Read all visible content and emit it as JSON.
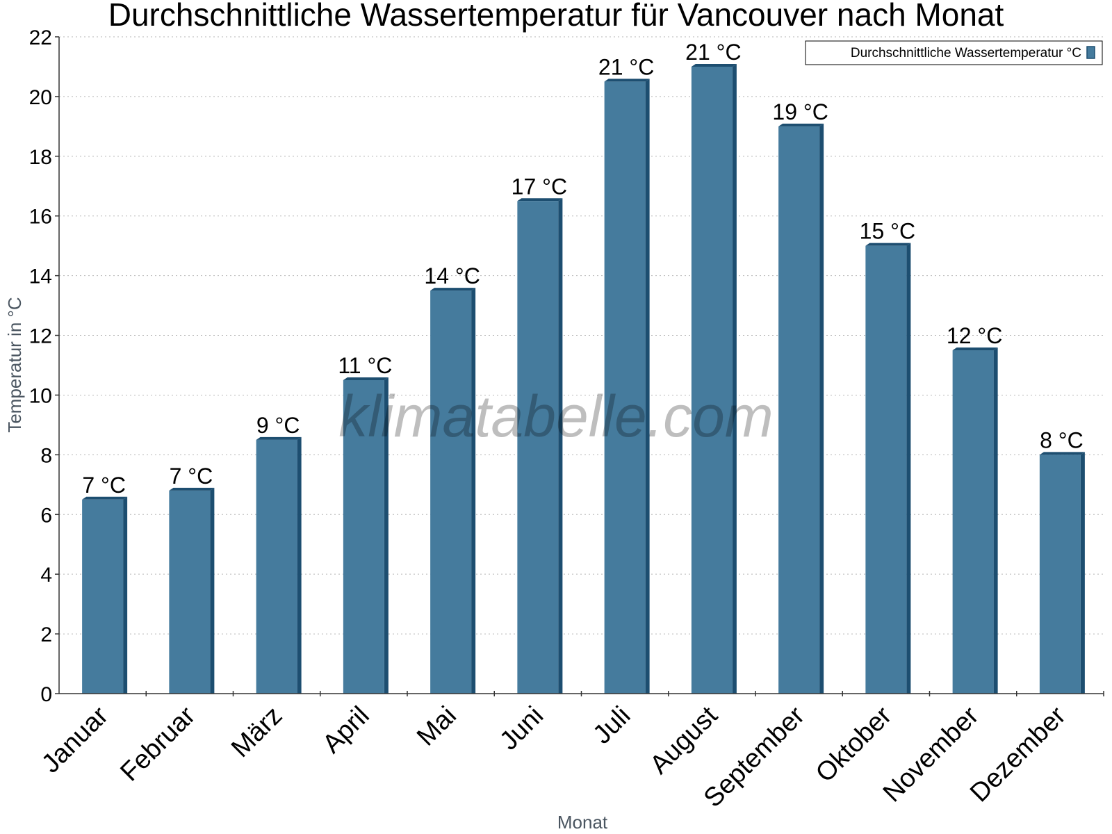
{
  "chart_data": {
    "type": "bar",
    "title": "Durchschnittliche Wassertemperatur für Vancouver nach Monat",
    "xlabel": "Monat",
    "ylabel": "Temperatur in °C",
    "categories": [
      "Januar",
      "Februar",
      "März",
      "April",
      "Mai",
      "Juni",
      "Juli",
      "August",
      "September",
      "Oktober",
      "November",
      "Dezember"
    ],
    "series": [
      {
        "name": "Durchschnittliche Wassertemperatur °C",
        "values": [
          6.5,
          6.8,
          8.5,
          10.5,
          13.5,
          16.5,
          20.5,
          21.0,
          19.0,
          15.0,
          11.5,
          8.0
        ],
        "labels": [
          "7 °C",
          "7 °C",
          "9 °C",
          "11 °C",
          "14 °C",
          "17 °C",
          "21 °C",
          "21 °C",
          "19 °C",
          "15 °C",
          "12 °C",
          "8 °C"
        ]
      }
    ],
    "ylim": [
      0,
      22
    ],
    "yticks": [
      "0",
      "2",
      "4",
      "6",
      "8",
      "10",
      "12",
      "14",
      "16",
      "18",
      "20",
      "22"
    ],
    "grid": true,
    "legend_position": "top-right",
    "bar_color": "#457b9d",
    "bar_edge_color": "#1d4e70",
    "watermark": "klimatabelle.com"
  }
}
